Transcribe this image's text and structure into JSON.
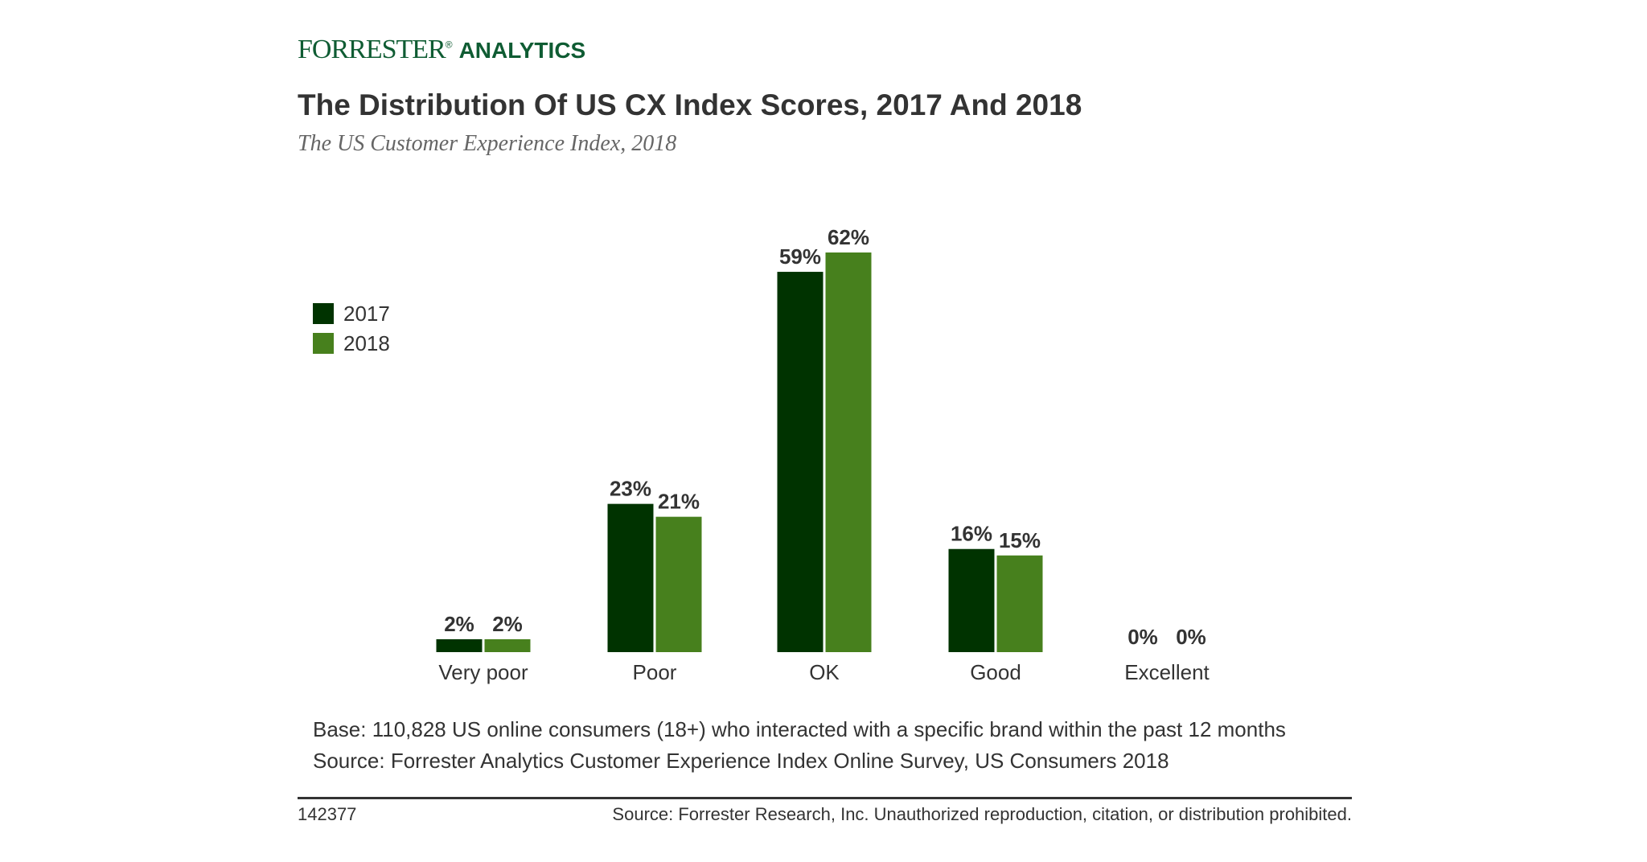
{
  "logo": {
    "forrester": "FORRESTER",
    "registered": "®",
    "analytics": "ANALYTICS"
  },
  "chart_data": {
    "type": "bar",
    "title": "The Distribution Of US CX Index Scores, 2017 And 2018",
    "subtitle": "The US Customer Experience Index, 2018",
    "categories": [
      "Very poor",
      "Poor",
      "OK",
      "Good",
      "Excellent"
    ],
    "series": [
      {
        "name": "2017",
        "color": "#003300",
        "values": [
          2,
          23,
          59,
          16,
          0
        ]
      },
      {
        "name": "2018",
        "color": "#47801d",
        "values": [
          2,
          21,
          62,
          15,
          0
        ]
      }
    ],
    "value_suffix": "%",
    "legend": "top-left",
    "grid": false,
    "ylim": [
      0,
      62
    ]
  },
  "notes": {
    "base": "Base: 110,828 US online consumers (18+) who interacted with a specific brand within the past 12 months",
    "source": "Source: Forrester Analytics Customer Experience Index Online Survey, US Consumers 2018"
  },
  "footer": {
    "id": "142377",
    "copyright": "Source: Forrester Research, Inc. Unauthorized reproduction, citation, or distribution prohibited."
  }
}
